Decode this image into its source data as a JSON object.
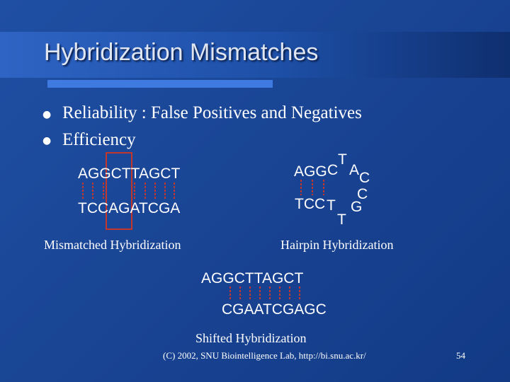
{
  "slide": {
    "title": "Hybridization Mismatches",
    "bullets": [
      "Reliability : False Positives and Negatives",
      "Efficiency"
    ],
    "mismatched": {
      "top_strand": "AGGCTTAGCT",
      "bottom_strand": "TCCAGATCGA",
      "label": "Mismatched Hybridization"
    },
    "hairpin": {
      "top_strand": "AGG",
      "bottom_strand": "TCC",
      "loop": [
        "C",
        "T",
        "A",
        "C",
        "C",
        "G",
        "T",
        "T"
      ],
      "label": "Hairpin Hybridization"
    },
    "shifted": {
      "top_strand": "AGGCTTAGCT",
      "bottom_strand": "CGAATCGAGC",
      "label": "Shifted Hybridization"
    },
    "footer": "(C) 2002, SNU Biointelligence Lab, http://bi.snu.ac.kr/",
    "page_number": "54",
    "colors": {
      "background": "#1a4595",
      "bond": "#c2362c",
      "highlight_box": "#c2362c",
      "underline": "#3f7ae0"
    }
  }
}
